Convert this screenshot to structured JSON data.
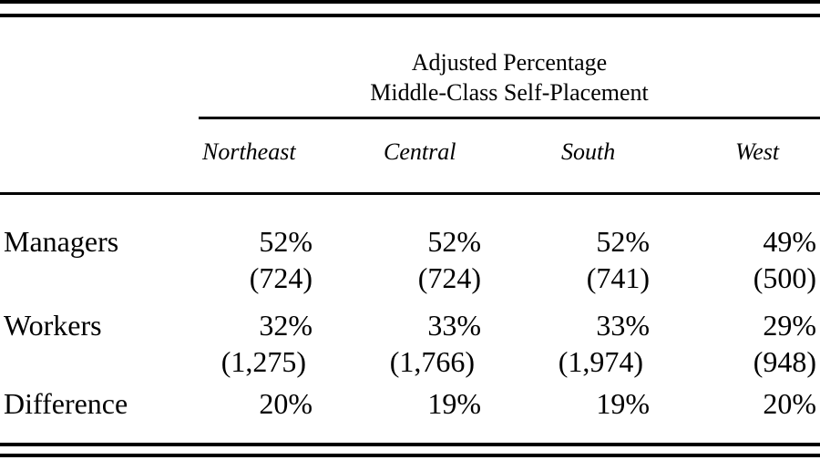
{
  "table": {
    "spanner_line1": "Adjusted Percentage",
    "spanner_line2": "Middle-Class Self-Placement",
    "columns": [
      "Northeast",
      "Central",
      "South",
      "West"
    ],
    "rows": [
      {
        "label": "Managers",
        "values": [
          "52%",
          "52%",
          "52%",
          "49%"
        ]
      },
      {
        "label": "",
        "values": [
          "(724)",
          "(724)",
          "(741)",
          "(500)"
        ]
      },
      {
        "label": "Workers",
        "values": [
          "32%",
          "33%",
          "33%",
          "29%"
        ]
      },
      {
        "label": "",
        "values": [
          "(1,275)",
          "(1,766)",
          "(1,974)",
          "(948)"
        ]
      },
      {
        "label": "Difference",
        "values": [
          "20%",
          "19%",
          "19%",
          "20%"
        ]
      }
    ]
  }
}
